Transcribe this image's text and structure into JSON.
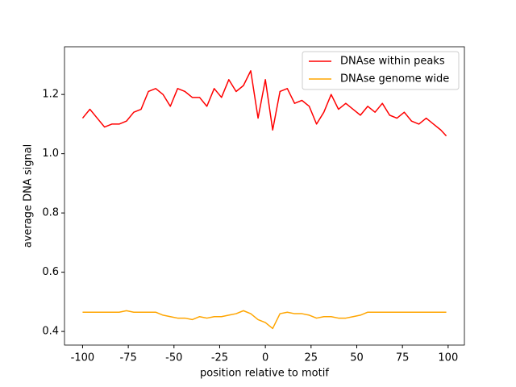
{
  "chart_data": {
    "type": "line",
    "xlabel": "position relative to motif",
    "ylabel": "average DNA signal",
    "x": [
      -100,
      -96,
      -92,
      -88,
      -84,
      -80,
      -76,
      -72,
      -68,
      -64,
      -60,
      -56,
      -52,
      -48,
      -44,
      -40,
      -36,
      -32,
      -28,
      -24,
      -20,
      -16,
      -12,
      -8,
      -4,
      0,
      4,
      8,
      12,
      16,
      20,
      24,
      28,
      32,
      36,
      40,
      44,
      48,
      52,
      56,
      60,
      64,
      68,
      72,
      76,
      80,
      84,
      88,
      92,
      96,
      99
    ],
    "series": [
      {
        "name": "DNAse within peaks",
        "color": "#ff0000",
        "values": [
          1.12,
          1.15,
          1.12,
          1.09,
          1.1,
          1.1,
          1.11,
          1.14,
          1.15,
          1.21,
          1.22,
          1.2,
          1.16,
          1.22,
          1.21,
          1.19,
          1.19,
          1.16,
          1.22,
          1.19,
          1.25,
          1.21,
          1.23,
          1.28,
          1.12,
          1.25,
          1.08,
          1.21,
          1.22,
          1.17,
          1.18,
          1.16,
          1.1,
          1.14,
          1.2,
          1.15,
          1.17,
          1.15,
          1.13,
          1.16,
          1.14,
          1.17,
          1.13,
          1.12,
          1.14,
          1.11,
          1.1,
          1.12,
          1.1,
          1.08,
          1.06
        ]
      },
      {
        "name": "DNAse genome wide",
        "color": "#ffa500",
        "values": [
          0.465,
          0.465,
          0.465,
          0.465,
          0.465,
          0.465,
          0.47,
          0.465,
          0.465,
          0.465,
          0.465,
          0.455,
          0.45,
          0.445,
          0.445,
          0.44,
          0.45,
          0.445,
          0.45,
          0.45,
          0.455,
          0.46,
          0.47,
          0.46,
          0.44,
          0.43,
          0.41,
          0.46,
          0.465,
          0.46,
          0.46,
          0.455,
          0.445,
          0.45,
          0.45,
          0.445,
          0.445,
          0.45,
          0.455,
          0.465,
          0.465,
          0.465,
          0.465,
          0.465,
          0.465,
          0.465,
          0.465,
          0.465,
          0.465,
          0.465,
          0.465
        ]
      }
    ],
    "xlim": [
      -109.9,
      108.9
    ],
    "ylim": [
      0.354,
      1.361
    ],
    "xticks": [
      -100,
      -75,
      -50,
      -25,
      0,
      25,
      50,
      75,
      100
    ],
    "yticks": [
      0.4,
      0.6,
      0.8,
      {
        "value": 1,
        "label": "1.0"
      },
      1.2
    ],
    "grid": false,
    "legend": "upper right"
  }
}
